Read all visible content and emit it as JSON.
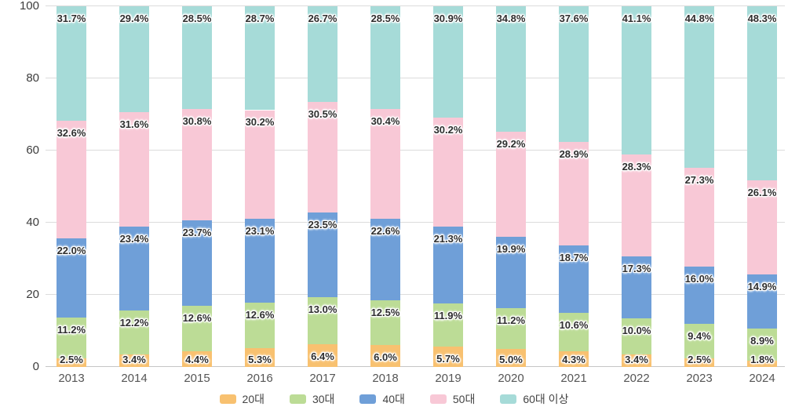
{
  "chart_data": {
    "type": "bar",
    "stacked": true,
    "title": "",
    "xlabel": "",
    "ylabel": "",
    "ylim": [
      0,
      100
    ],
    "y_ticks": [
      0,
      20,
      40,
      60,
      80,
      100
    ],
    "grid": true,
    "legend_position": "bottom",
    "value_suffix": "%",
    "categories": [
      "2013",
      "2014",
      "2015",
      "2016",
      "2017",
      "2018",
      "2019",
      "2020",
      "2021",
      "2022",
      "2023",
      "2024"
    ],
    "series": [
      {
        "name": "20대",
        "color": "#F8C170",
        "values": [
          2.5,
          3.4,
          4.4,
          5.3,
          6.4,
          6.0,
          5.7,
          5.0,
          4.3,
          3.4,
          2.5,
          1.8
        ]
      },
      {
        "name": "30대",
        "color": "#BCDC96",
        "values": [
          11.2,
          12.2,
          12.6,
          12.6,
          13.0,
          12.5,
          11.9,
          11.2,
          10.6,
          10.0,
          9.4,
          8.9
        ]
      },
      {
        "name": "40대",
        "color": "#6F9FD8",
        "values": [
          22.0,
          23.4,
          23.7,
          23.1,
          23.5,
          22.6,
          21.3,
          19.9,
          18.7,
          17.3,
          16.0,
          14.9
        ]
      },
      {
        "name": "50대",
        "color": "#F8C8D6",
        "values": [
          32.6,
          31.6,
          30.8,
          30.2,
          30.5,
          30.4,
          30.2,
          29.2,
          28.9,
          28.3,
          27.3,
          26.1
        ]
      },
      {
        "name": "60대 이상",
        "color": "#A6DBD8",
        "values": [
          31.7,
          29.4,
          28.5,
          28.7,
          26.7,
          28.5,
          30.9,
          34.8,
          37.6,
          41.1,
          44.8,
          48.3
        ]
      }
    ],
    "colors": {
      "grid": "#DCDCDC",
      "baseline": "#C6C6C6",
      "tick_text": "#3C3C3C",
      "category_text": "#555555",
      "value_label_text": "#2E2E2E",
      "legend_text": "#444444",
      "background": "#FFFFFF"
    }
  }
}
